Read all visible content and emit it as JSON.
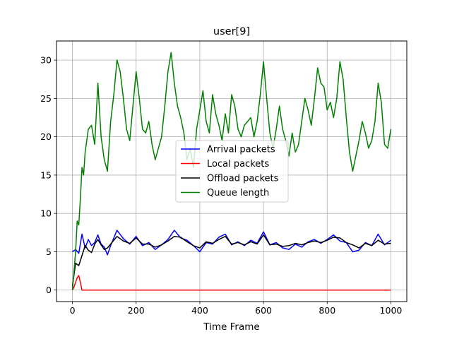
{
  "chart_data": {
    "type": "line",
    "title": "user[9]",
    "xlabel": "Time Frame",
    "ylabel": "",
    "xlim": [
      -50,
      1050
    ],
    "ylim": [
      -1.5,
      32.5
    ],
    "xticks": [
      0,
      200,
      400,
      600,
      800,
      1000
    ],
    "yticks": [
      0,
      5,
      10,
      15,
      20,
      25,
      30
    ],
    "grid": true,
    "legend_position": "center",
    "series": [
      {
        "name": "Arrival packets",
        "color": "#0000ff",
        "x": [
          0,
          10,
          20,
          30,
          40,
          50,
          60,
          70,
          80,
          90,
          100,
          110,
          120,
          140,
          160,
          180,
          200,
          220,
          240,
          260,
          280,
          300,
          320,
          340,
          360,
          380,
          400,
          420,
          440,
          460,
          480,
          500,
          520,
          540,
          560,
          580,
          600,
          620,
          640,
          660,
          680,
          700,
          720,
          740,
          760,
          780,
          800,
          820,
          840,
          860,
          880,
          900,
          920,
          940,
          960,
          980,
          1000
        ],
        "y": [
          5.0,
          5.3,
          4.8,
          7.3,
          5.5,
          6.6,
          5.8,
          6.2,
          7.2,
          6.0,
          5.6,
          4.6,
          5.8,
          7.8,
          6.7,
          6.0,
          7.0,
          5.8,
          6.2,
          5.3,
          5.9,
          6.6,
          7.8,
          6.8,
          6.5,
          5.8,
          5.0,
          6.2,
          6.0,
          6.9,
          7.3,
          5.9,
          6.3,
          5.8,
          6.5,
          6.1,
          7.6,
          5.9,
          6.2,
          5.5,
          5.3,
          6.0,
          5.6,
          6.3,
          6.6,
          6.1,
          6.6,
          7.2,
          6.4,
          6.2,
          5.0,
          5.2,
          6.2,
          5.8,
          7.3,
          5.9,
          6.5
        ]
      },
      {
        "name": "Local packets",
        "color": "#ff0000",
        "x": [
          0,
          5,
          10,
          15,
          20,
          25,
          30,
          1000
        ],
        "y": [
          0,
          0.4,
          1.0,
          1.6,
          1.9,
          1.0,
          0,
          0
        ]
      },
      {
        "name": "Offload packets",
        "color": "#000000",
        "x": [
          0,
          10,
          20,
          30,
          40,
          50,
          60,
          70,
          80,
          90,
          100,
          110,
          120,
          140,
          160,
          180,
          200,
          220,
          240,
          260,
          280,
          300,
          320,
          340,
          360,
          380,
          400,
          420,
          440,
          460,
          480,
          500,
          520,
          540,
          560,
          580,
          600,
          620,
          640,
          660,
          680,
          700,
          720,
          740,
          760,
          780,
          800,
          820,
          840,
          860,
          880,
          900,
          920,
          940,
          960,
          980,
          1000
        ],
        "y": [
          0.5,
          3.5,
          3.2,
          4.5,
          5.8,
          5.2,
          4.9,
          6.0,
          6.6,
          5.9,
          5.3,
          5.5,
          6.0,
          7.0,
          6.4,
          6.1,
          6.8,
          6.0,
          6.0,
          5.6,
          5.9,
          6.4,
          7.0,
          6.9,
          6.3,
          5.8,
          5.5,
          6.3,
          6.1,
          6.6,
          7.0,
          6.0,
          6.2,
          5.9,
          6.3,
          6.0,
          7.2,
          5.9,
          6.0,
          5.7,
          5.8,
          6.1,
          5.9,
          6.2,
          6.4,
          6.2,
          6.5,
          6.9,
          6.8,
          6.2,
          5.9,
          5.5,
          6.1,
          5.8,
          6.5,
          6.0,
          6.1
        ]
      },
      {
        "name": "Queue length",
        "color": "#008000",
        "x": [
          0,
          5,
          10,
          15,
          20,
          25,
          30,
          35,
          40,
          50,
          60,
          70,
          80,
          90,
          100,
          110,
          120,
          130,
          140,
          150,
          160,
          170,
          180,
          190,
          200,
          210,
          220,
          230,
          240,
          250,
          260,
          270,
          280,
          290,
          300,
          310,
          320,
          330,
          340,
          350,
          360,
          370,
          380,
          390,
          400,
          410,
          420,
          430,
          440,
          450,
          460,
          470,
          480,
          490,
          500,
          510,
          520,
          530,
          540,
          550,
          560,
          570,
          580,
          590,
          600,
          610,
          620,
          630,
          640,
          650,
          660,
          670,
          680,
          690,
          700,
          710,
          720,
          730,
          740,
          750,
          760,
          770,
          780,
          790,
          800,
          810,
          820,
          830,
          840,
          850,
          860,
          870,
          880,
          890,
          900,
          910,
          920,
          930,
          940,
          950,
          960,
          970,
          980,
          990,
          1000
        ],
        "y": [
          0,
          2.5,
          5.0,
          9.0,
          8.5,
          12.0,
          16.0,
          15.0,
          18.0,
          21.0,
          21.5,
          19.0,
          27.0,
          20.0,
          17.0,
          15.5,
          22.0,
          25.5,
          30.0,
          28.5,
          25.0,
          21.0,
          19.5,
          24.0,
          28.5,
          25.0,
          21.0,
          20.5,
          22.0,
          19.0,
          17.0,
          18.5,
          20.0,
          24.0,
          28.5,
          31.0,
          27.0,
          24.0,
          22.5,
          20.5,
          17.0,
          18.5,
          16.0,
          21.0,
          23.5,
          26.0,
          22.0,
          20.5,
          25.5,
          23.0,
          21.5,
          19.5,
          23.0,
          20.5,
          25.5,
          24.0,
          21.0,
          20.0,
          21.5,
          22.0,
          22.5,
          20.0,
          22.0,
          25.5,
          29.8,
          25.0,
          20.5,
          18.5,
          21.0,
          24.0,
          21.0,
          19.5,
          17.5,
          20.5,
          18.0,
          19.0,
          22.0,
          25.0,
          23.5,
          21.5,
          25.0,
          29.0,
          27.0,
          26.5,
          23.5,
          24.5,
          22.5,
          25.0,
          29.8,
          27.5,
          22.5,
          18.0,
          15.5,
          17.5,
          19.5,
          22.0,
          20.5,
          18.5,
          19.5,
          22.0,
          27.0,
          24.5,
          19.0,
          18.5,
          21.0
        ]
      }
    ]
  }
}
